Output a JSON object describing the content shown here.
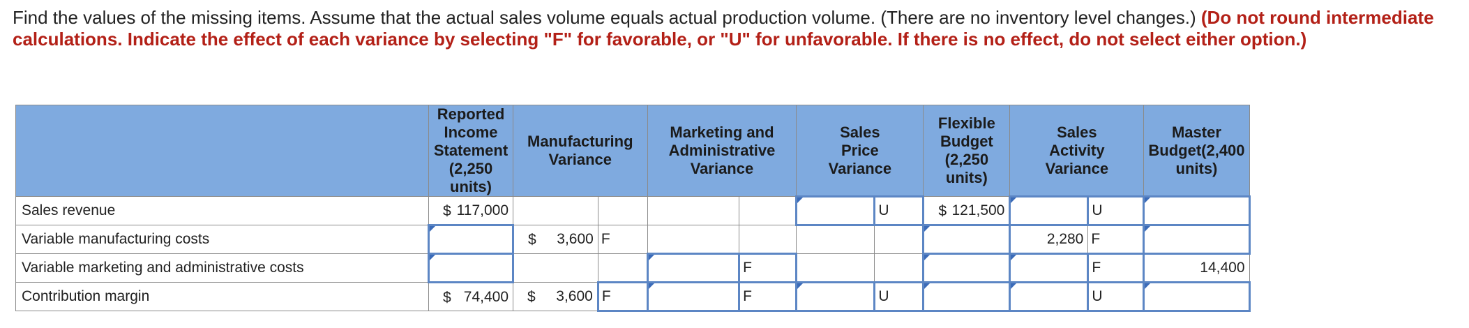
{
  "instructions": {
    "plain": "Find the values of the missing items. Assume that the actual sales volume equals actual production volume. (There are no inventory level changes.) ",
    "emphasis": "(Do not round intermediate calculations. Indicate the effect of each variance by selecting \"F\" for favorable, or \"U\" for unfavorable. If there is no effect, do not select either option.)"
  },
  "table": {
    "headers": [
      "",
      "Reported Income Statement (2,250 units)",
      "Manufacturing Variance",
      "Marketing and Administrative Variance",
      "Sales Price Variance",
      "Flexible Budget (2,250 units)",
      "Sales Activity Variance",
      "Master Budget(2,400 units)"
    ],
    "rows": [
      {
        "label": "Sales revenue",
        "reported": {
          "prefix": "$",
          "value": "117,000"
        },
        "mfg": {
          "prefix": "",
          "value": "",
          "fu": ""
        },
        "mkt": {
          "value": "",
          "fu": ""
        },
        "price": {
          "value": "",
          "fu": "U"
        },
        "flex": {
          "prefix": "$",
          "value": "121,500"
        },
        "activity": {
          "value": "",
          "fu": "U"
        },
        "master": {
          "value": ""
        }
      },
      {
        "label": "Variable manufacturing costs",
        "reported": {
          "prefix": "",
          "value": ""
        },
        "mfg": {
          "prefix": "$",
          "value": "3,600",
          "fu": "F"
        },
        "mkt": {
          "value": "",
          "fu": ""
        },
        "price": {
          "value": "",
          "fu": ""
        },
        "flex": {
          "prefix": "",
          "value": ""
        },
        "activity": {
          "value": "2,280",
          "fu": "F"
        },
        "master": {
          "value": ""
        }
      },
      {
        "label": "Variable marketing and administrative costs",
        "reported": {
          "prefix": "",
          "value": ""
        },
        "mfg": {
          "prefix": "",
          "value": "",
          "fu": ""
        },
        "mkt": {
          "value": "",
          "fu": "F"
        },
        "price": {
          "value": "",
          "fu": ""
        },
        "flex": {
          "prefix": "",
          "value": ""
        },
        "activity": {
          "value": "",
          "fu": "F"
        },
        "master": {
          "value": "14,400"
        }
      },
      {
        "label": "Contribution margin",
        "reported": {
          "prefix": "$",
          "value": "74,400"
        },
        "mfg": {
          "prefix": "$",
          "value": "3,600",
          "fu": "F"
        },
        "mkt": {
          "value": "",
          "fu": "F"
        },
        "price": {
          "value": "",
          "fu": "U"
        },
        "flex": {
          "prefix": "",
          "value": ""
        },
        "activity": {
          "value": "",
          "fu": "U"
        },
        "master": {
          "value": ""
        }
      }
    ]
  }
}
